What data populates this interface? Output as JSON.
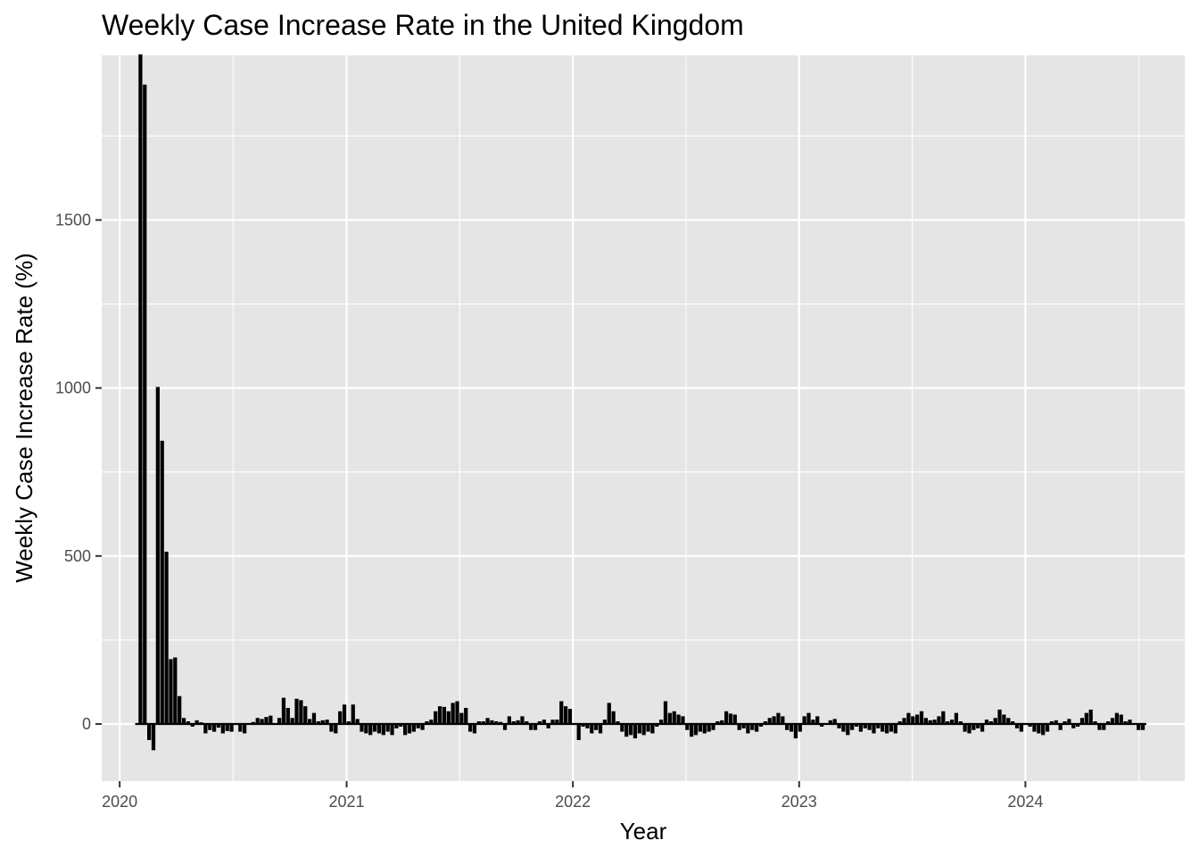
{
  "chart_data": {
    "type": "line",
    "title": "Weekly Case Increase Rate in the United Kingdom",
    "xlabel": "Year",
    "ylabel": "Weekly Case Increase Rate (%)",
    "xlim": [
      "2019-12-03",
      "2024-09-14"
    ],
    "ylim": [
      -170,
      1990
    ],
    "x_ticks": [
      {
        "label": "2020",
        "date": "2020-01-01"
      },
      {
        "label": "2021",
        "date": "2021-01-01"
      },
      {
        "label": "2022",
        "date": "2022-01-01"
      },
      {
        "label": "2023",
        "date": "2023-01-01"
      },
      {
        "label": "2024",
        "date": "2024-01-01"
      }
    ],
    "y_ticks": [
      0,
      500,
      1000,
      1500
    ],
    "grid": true,
    "legend": "none",
    "colors": {
      "panel": "#e5e5e5",
      "grid": "#ffffff",
      "line": "#000000",
      "tick_text": "#4d4d4d"
    },
    "series": [
      {
        "start_date": "2020-01-26",
        "step_days": 7,
        "values": [
          0,
          2000,
          1900,
          -45,
          -75,
          1000,
          840,
          510,
          190,
          195,
          80,
          15,
          5,
          -5,
          8,
          2,
          -25,
          -15,
          -20,
          -8,
          -25,
          -18,
          -20,
          0,
          -20,
          -25,
          0,
          3,
          15,
          12,
          18,
          22,
          0,
          15,
          75,
          45,
          15,
          72,
          68,
          50,
          12,
          30,
          5,
          8,
          10,
          -20,
          -25,
          35,
          55,
          5,
          55,
          12,
          -20,
          -25,
          -30,
          -20,
          -25,
          -30,
          -20,
          -30,
          -10,
          -5,
          -30,
          -25,
          -20,
          -10,
          -15,
          5,
          10,
          35,
          50,
          48,
          35,
          60,
          65,
          30,
          45,
          -20,
          -25,
          5,
          5,
          15,
          8,
          5,
          3,
          -15,
          20,
          5,
          8,
          20,
          5,
          -15,
          -15,
          5,
          10,
          -10,
          10,
          10,
          65,
          50,
          42,
          0,
          -45,
          -5,
          -10,
          -25,
          -15,
          -25,
          10,
          60,
          35,
          5,
          -20,
          -35,
          -30,
          -40,
          -25,
          -30,
          -20,
          -25,
          -5,
          10,
          65,
          30,
          35,
          25,
          20,
          -15,
          -35,
          -30,
          -20,
          -25,
          -20,
          -15,
          5,
          8,
          35,
          28,
          25,
          -15,
          -10,
          -25,
          -15,
          -20,
          -5,
          5,
          15,
          20,
          30,
          20,
          -15,
          -20,
          -40,
          -20,
          20,
          30,
          10,
          20,
          -5,
          0,
          8,
          12,
          -10,
          -20,
          -30,
          -15,
          -5,
          -20,
          -10,
          -15,
          -25,
          -10,
          -20,
          -25,
          -20,
          -25,
          5,
          15,
          30,
          20,
          25,
          35,
          15,
          8,
          10,
          20,
          35,
          5,
          10,
          30,
          5,
          -20,
          -25,
          -15,
          -10,
          -20,
          10,
          5,
          15,
          40,
          25,
          15,
          5,
          -10,
          -20,
          0,
          -5,
          -20,
          -25,
          -30,
          -20,
          5,
          8,
          -15,
          5,
          12,
          -10,
          -5,
          15,
          30,
          40,
          5,
          -15,
          -15,
          5,
          15,
          30,
          25,
          5,
          10,
          0,
          -15,
          -15
        ]
      }
    ]
  }
}
